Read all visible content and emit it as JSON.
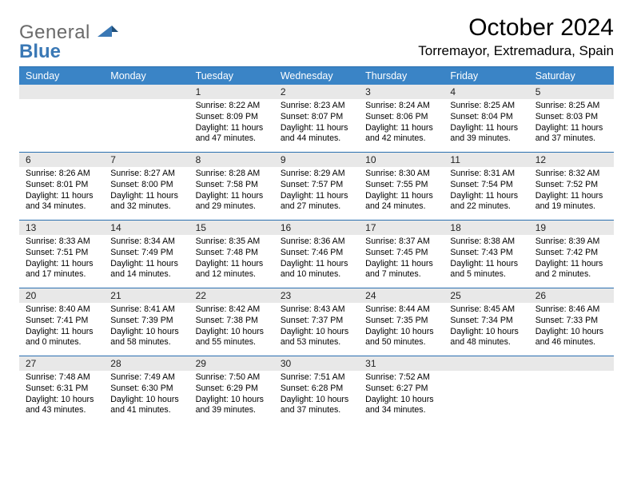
{
  "logo": {
    "line1": "General",
    "line2": "Blue"
  },
  "title": "October 2024",
  "location": "Torremayor, Extremadura, Spain",
  "colors": {
    "header_bg": "#3a84c6",
    "header_text": "#ffffff",
    "rule": "#2a6fb0",
    "daynum_bg": "#e8e8e8",
    "logo_gray": "#6a6a6a",
    "logo_blue": "#3a78b5"
  },
  "dayNames": [
    "Sunday",
    "Monday",
    "Tuesday",
    "Wednesday",
    "Thursday",
    "Friday",
    "Saturday"
  ],
  "weeks": [
    [
      {
        "n": "",
        "sunrise": "",
        "sunset": "",
        "daylight": ""
      },
      {
        "n": "",
        "sunrise": "",
        "sunset": "",
        "daylight": ""
      },
      {
        "n": "1",
        "sunrise": "Sunrise: 8:22 AM",
        "sunset": "Sunset: 8:09 PM",
        "daylight": "Daylight: 11 hours and 47 minutes."
      },
      {
        "n": "2",
        "sunrise": "Sunrise: 8:23 AM",
        "sunset": "Sunset: 8:07 PM",
        "daylight": "Daylight: 11 hours and 44 minutes."
      },
      {
        "n": "3",
        "sunrise": "Sunrise: 8:24 AM",
        "sunset": "Sunset: 8:06 PM",
        "daylight": "Daylight: 11 hours and 42 minutes."
      },
      {
        "n": "4",
        "sunrise": "Sunrise: 8:25 AM",
        "sunset": "Sunset: 8:04 PM",
        "daylight": "Daylight: 11 hours and 39 minutes."
      },
      {
        "n": "5",
        "sunrise": "Sunrise: 8:25 AM",
        "sunset": "Sunset: 8:03 PM",
        "daylight": "Daylight: 11 hours and 37 minutes."
      }
    ],
    [
      {
        "n": "6",
        "sunrise": "Sunrise: 8:26 AM",
        "sunset": "Sunset: 8:01 PM",
        "daylight": "Daylight: 11 hours and 34 minutes."
      },
      {
        "n": "7",
        "sunrise": "Sunrise: 8:27 AM",
        "sunset": "Sunset: 8:00 PM",
        "daylight": "Daylight: 11 hours and 32 minutes."
      },
      {
        "n": "8",
        "sunrise": "Sunrise: 8:28 AM",
        "sunset": "Sunset: 7:58 PM",
        "daylight": "Daylight: 11 hours and 29 minutes."
      },
      {
        "n": "9",
        "sunrise": "Sunrise: 8:29 AM",
        "sunset": "Sunset: 7:57 PM",
        "daylight": "Daylight: 11 hours and 27 minutes."
      },
      {
        "n": "10",
        "sunrise": "Sunrise: 8:30 AM",
        "sunset": "Sunset: 7:55 PM",
        "daylight": "Daylight: 11 hours and 24 minutes."
      },
      {
        "n": "11",
        "sunrise": "Sunrise: 8:31 AM",
        "sunset": "Sunset: 7:54 PM",
        "daylight": "Daylight: 11 hours and 22 minutes."
      },
      {
        "n": "12",
        "sunrise": "Sunrise: 8:32 AM",
        "sunset": "Sunset: 7:52 PM",
        "daylight": "Daylight: 11 hours and 19 minutes."
      }
    ],
    [
      {
        "n": "13",
        "sunrise": "Sunrise: 8:33 AM",
        "sunset": "Sunset: 7:51 PM",
        "daylight": "Daylight: 11 hours and 17 minutes."
      },
      {
        "n": "14",
        "sunrise": "Sunrise: 8:34 AM",
        "sunset": "Sunset: 7:49 PM",
        "daylight": "Daylight: 11 hours and 14 minutes."
      },
      {
        "n": "15",
        "sunrise": "Sunrise: 8:35 AM",
        "sunset": "Sunset: 7:48 PM",
        "daylight": "Daylight: 11 hours and 12 minutes."
      },
      {
        "n": "16",
        "sunrise": "Sunrise: 8:36 AM",
        "sunset": "Sunset: 7:46 PM",
        "daylight": "Daylight: 11 hours and 10 minutes."
      },
      {
        "n": "17",
        "sunrise": "Sunrise: 8:37 AM",
        "sunset": "Sunset: 7:45 PM",
        "daylight": "Daylight: 11 hours and 7 minutes."
      },
      {
        "n": "18",
        "sunrise": "Sunrise: 8:38 AM",
        "sunset": "Sunset: 7:43 PM",
        "daylight": "Daylight: 11 hours and 5 minutes."
      },
      {
        "n": "19",
        "sunrise": "Sunrise: 8:39 AM",
        "sunset": "Sunset: 7:42 PM",
        "daylight": "Daylight: 11 hours and 2 minutes."
      }
    ],
    [
      {
        "n": "20",
        "sunrise": "Sunrise: 8:40 AM",
        "sunset": "Sunset: 7:41 PM",
        "daylight": "Daylight: 11 hours and 0 minutes."
      },
      {
        "n": "21",
        "sunrise": "Sunrise: 8:41 AM",
        "sunset": "Sunset: 7:39 PM",
        "daylight": "Daylight: 10 hours and 58 minutes."
      },
      {
        "n": "22",
        "sunrise": "Sunrise: 8:42 AM",
        "sunset": "Sunset: 7:38 PM",
        "daylight": "Daylight: 10 hours and 55 minutes."
      },
      {
        "n": "23",
        "sunrise": "Sunrise: 8:43 AM",
        "sunset": "Sunset: 7:37 PM",
        "daylight": "Daylight: 10 hours and 53 minutes."
      },
      {
        "n": "24",
        "sunrise": "Sunrise: 8:44 AM",
        "sunset": "Sunset: 7:35 PM",
        "daylight": "Daylight: 10 hours and 50 minutes."
      },
      {
        "n": "25",
        "sunrise": "Sunrise: 8:45 AM",
        "sunset": "Sunset: 7:34 PM",
        "daylight": "Daylight: 10 hours and 48 minutes."
      },
      {
        "n": "26",
        "sunrise": "Sunrise: 8:46 AM",
        "sunset": "Sunset: 7:33 PM",
        "daylight": "Daylight: 10 hours and 46 minutes."
      }
    ],
    [
      {
        "n": "27",
        "sunrise": "Sunrise: 7:48 AM",
        "sunset": "Sunset: 6:31 PM",
        "daylight": "Daylight: 10 hours and 43 minutes."
      },
      {
        "n": "28",
        "sunrise": "Sunrise: 7:49 AM",
        "sunset": "Sunset: 6:30 PM",
        "daylight": "Daylight: 10 hours and 41 minutes."
      },
      {
        "n": "29",
        "sunrise": "Sunrise: 7:50 AM",
        "sunset": "Sunset: 6:29 PM",
        "daylight": "Daylight: 10 hours and 39 minutes."
      },
      {
        "n": "30",
        "sunrise": "Sunrise: 7:51 AM",
        "sunset": "Sunset: 6:28 PM",
        "daylight": "Daylight: 10 hours and 37 minutes."
      },
      {
        "n": "31",
        "sunrise": "Sunrise: 7:52 AM",
        "sunset": "Sunset: 6:27 PM",
        "daylight": "Daylight: 10 hours and 34 minutes."
      },
      {
        "n": "",
        "sunrise": "",
        "sunset": "",
        "daylight": ""
      },
      {
        "n": "",
        "sunrise": "",
        "sunset": "",
        "daylight": ""
      }
    ]
  ]
}
